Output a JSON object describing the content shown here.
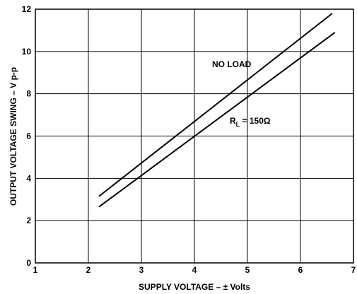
{
  "chart_data": {
    "type": "line",
    "xlabel": "SUPPLY VOLTAGE – ± Volts",
    "ylabel": "OUTPUT VOLTAGE SWING – V p-p",
    "xlim": [
      1,
      7
    ],
    "ylim": [
      0,
      12
    ],
    "xticks": [
      "1",
      "2",
      "3",
      "4",
      "5",
      "6",
      "7"
    ],
    "yticks": [
      "0",
      "2",
      "4",
      "6",
      "8",
      "10",
      "12"
    ],
    "grid": true,
    "series": [
      {
        "name": "NO LOAD",
        "x": [
          2.2,
          6.6
        ],
        "y": [
          3.15,
          11.8
        ]
      },
      {
        "name": "R",
        "name_subscript": "L",
        "name_suffix": " = 150Ω",
        "x": [
          2.2,
          6.65
        ],
        "y": [
          2.65,
          10.9
        ]
      }
    ]
  }
}
